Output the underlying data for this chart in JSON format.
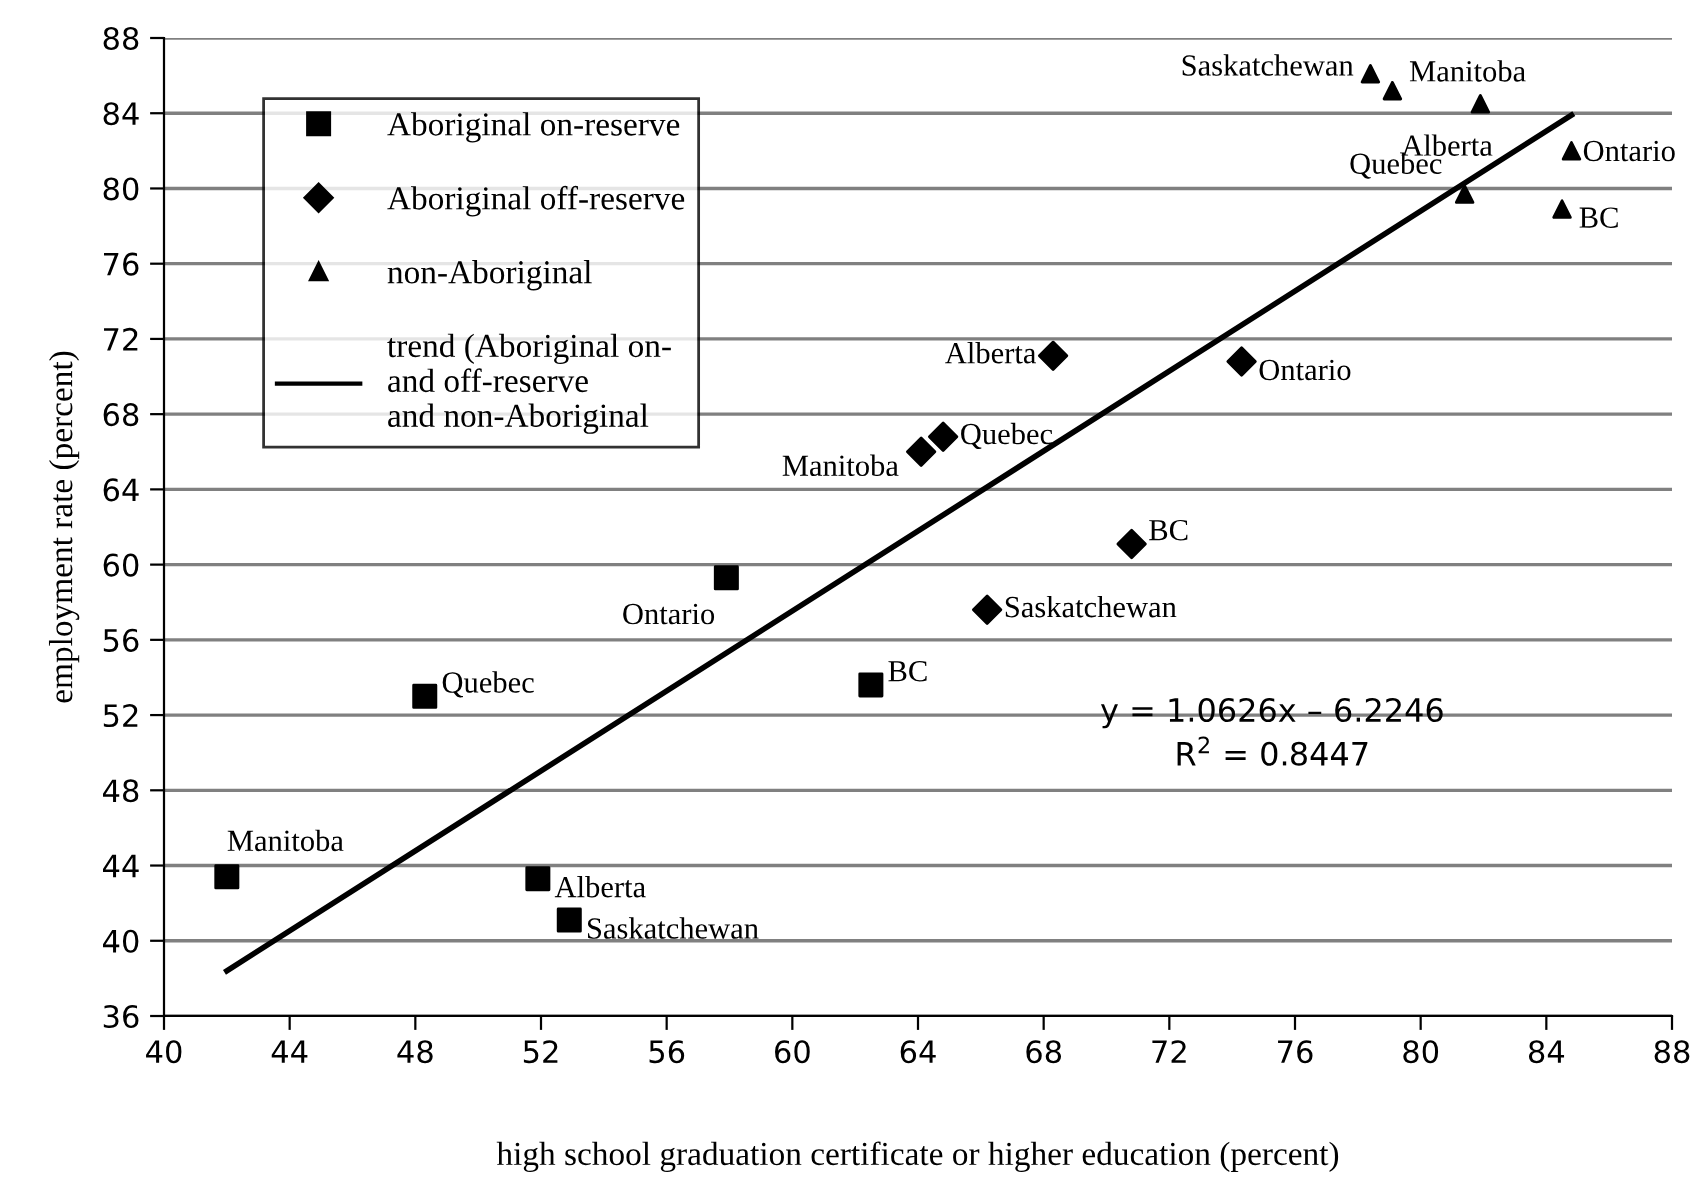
{
  "chart_data": {
    "type": "scatter",
    "xlabel": "high school graduation certificate or higher education (percent)",
    "ylabel": "employment rate (percent)",
    "xlim": [
      40,
      88
    ],
    "xticks": [
      40,
      44,
      48,
      52,
      56,
      60,
      64,
      68,
      72,
      76,
      80,
      84,
      88
    ],
    "ylim": [
      36,
      88
    ],
    "yticks": [
      36,
      40,
      44,
      48,
      52,
      56,
      60,
      64,
      68,
      72,
      76,
      80,
      84,
      88
    ],
    "grid": "y",
    "legend": "top left",
    "series": [
      {
        "name": "Aboriginal on-reserve",
        "marker": "square",
        "color": "#000000",
        "x": [
          42.0,
          48.3,
          51.9,
          52.9,
          57.9,
          62.5
        ],
        "values": [
          43.4,
          53.0,
          43.3,
          41.1,
          59.3,
          53.6
        ]
      },
      {
        "name": "Aboriginal off-reserve",
        "marker": "diamond",
        "color": "#000000",
        "x": [
          64.1,
          64.8,
          68.3,
          74.3,
          70.8,
          66.2
        ],
        "values": [
          66.0,
          66.8,
          71.1,
          70.8,
          61.1,
          57.6
        ]
      },
      {
        "name": "non-Aboriginal",
        "marker": "triangle",
        "color": "#000000",
        "x": [
          78.4,
          79.1,
          81.9,
          84.8,
          81.4,
          84.5
        ],
        "values": [
          86.1,
          85.2,
          84.5,
          82.0,
          79.7,
          78.9
        ]
      },
      {
        "name": "trend (Aboriginal on-\nand off-reserve\nand non-Aboriginal",
        "type": "line",
        "marker": "none",
        "line_style": "solid",
        "color": "#000000",
        "x": [
          42.0,
          84.8
        ],
        "values": [
          38.4,
          83.9
        ]
      }
    ],
    "annotations": [
      {
        "text": "Manitoba",
        "x": 42.0,
        "y": 43.4
      },
      {
        "text": "Quebec",
        "x": 48.3,
        "y": 53.0
      },
      {
        "text": "Alberta",
        "x": 51.9,
        "y": 43.3
      },
      {
        "text": "Saskatchewan",
        "x": 52.9,
        "y": 41.1
      },
      {
        "text": "Ontario",
        "x": 57.9,
        "y": 59.3
      },
      {
        "text": "BC",
        "x": 62.5,
        "y": 53.6
      },
      {
        "text": "Manitoba",
        "x": 64.1,
        "y": 66.0
      },
      {
        "text": "Quebec",
        "x": 64.8,
        "y": 66.8
      },
      {
        "text": "Alberta",
        "x": 68.3,
        "y": 71.1
      },
      {
        "text": "Ontario",
        "x": 74.3,
        "y": 70.8
      },
      {
        "text": "BC",
        "x": 70.8,
        "y": 61.1
      },
      {
        "text": "Saskatchewan",
        "x": 66.2,
        "y": 57.6
      },
      {
        "text": "Saskatchewan",
        "x": 78.4,
        "y": 86.1
      },
      {
        "text": "Manitoba",
        "x": 79.1,
        "y": 85.2
      },
      {
        "text": "Alberta",
        "x": 81.9,
        "y": 84.5
      },
      {
        "text": "Ontario",
        "x": 84.8,
        "y": 82.0
      },
      {
        "text": "Quebec",
        "x": 81.4,
        "y": 79.7
      },
      {
        "text": "BC",
        "x": 84.5,
        "y": 78.9
      },
      "y = 1.0626x – 6.2246",
      "R$^{2}$ = 0.8447"
    ]
  }
}
